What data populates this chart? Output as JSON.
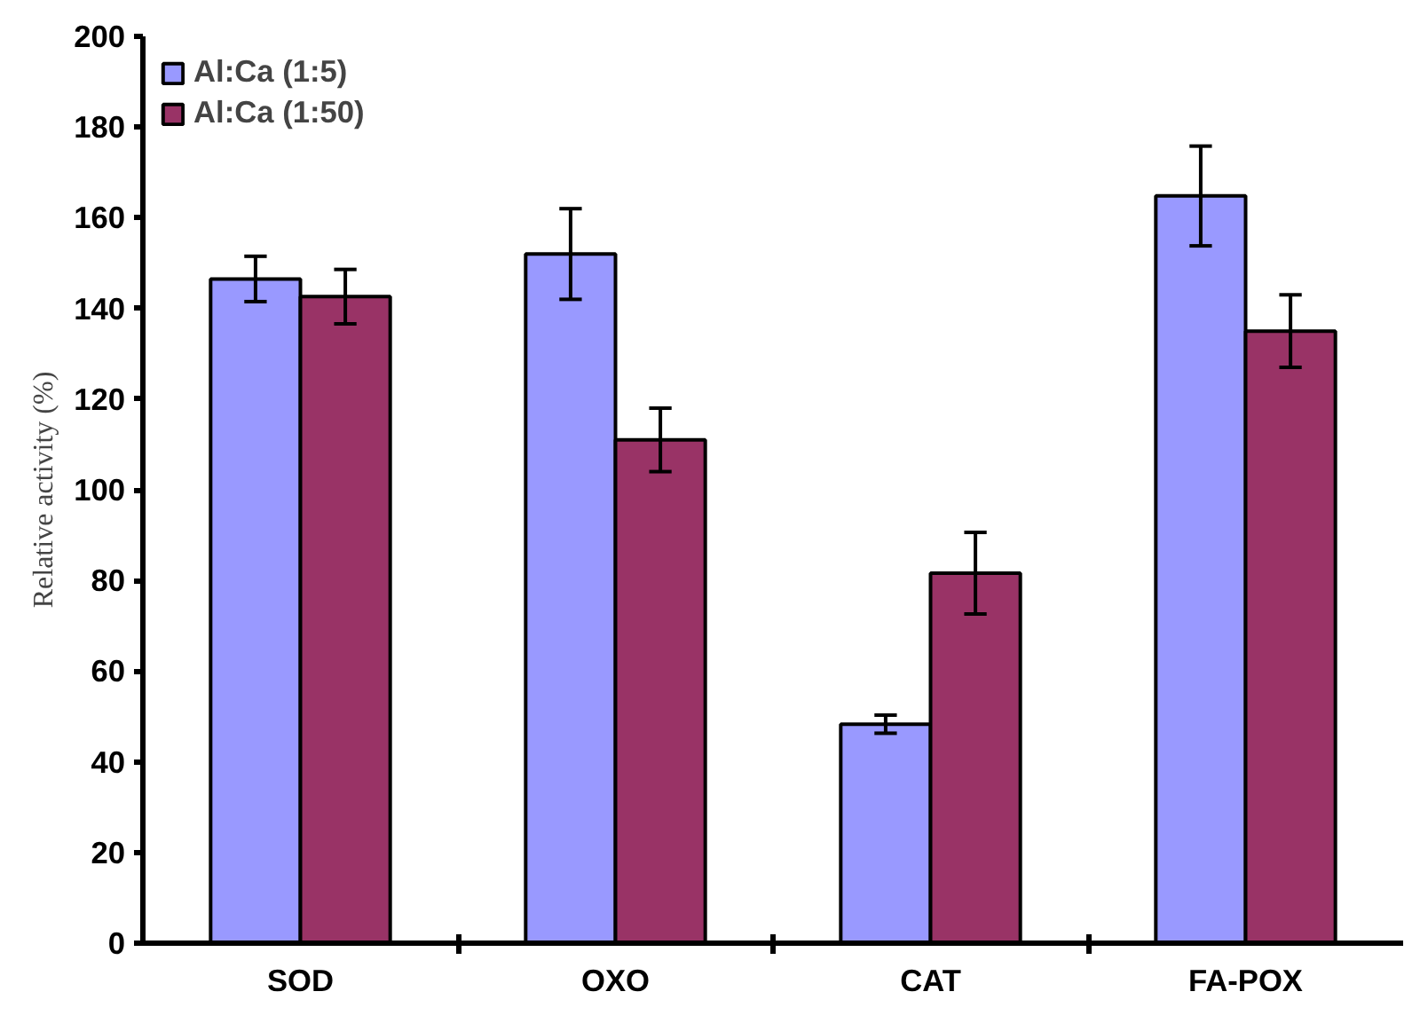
{
  "chart_data": {
    "type": "bar",
    "ylabel": "Relative activity (%)",
    "categories": [
      "SOD",
      "OXO",
      "CAT",
      "FA-POX"
    ],
    "series": [
      {
        "name": "Al:Ca (1:5)",
        "color": "#9999ff",
        "values": [
          146.5,
          152,
          48.3,
          164.8
        ],
        "errors": [
          5,
          10,
          2,
          11
        ]
      },
      {
        "name": "Al:Ca (1:50)",
        "color": "#993366",
        "values": [
          142.6,
          111,
          81.6,
          135
        ],
        "errors": [
          6,
          7,
          9,
          8
        ]
      }
    ],
    "ylim": [
      0,
      200
    ],
    "yticks": [
      0,
      20,
      40,
      60,
      80,
      100,
      120,
      140,
      160,
      180,
      200
    ],
    "grid": false,
    "legend": "top left"
  }
}
